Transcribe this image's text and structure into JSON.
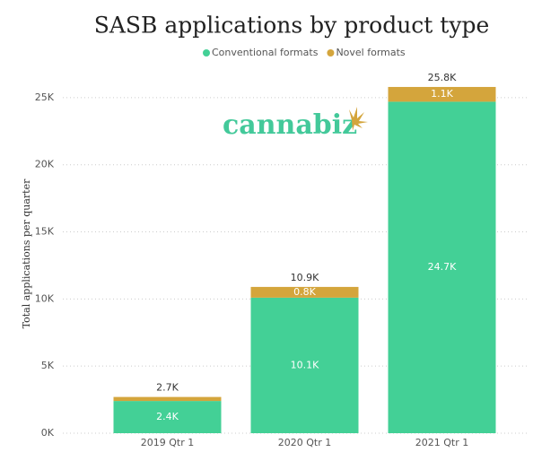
{
  "chart_data": {
    "type": "stacked_bar",
    "title": "SASB applications by product type",
    "y_label": "Total applications per quarter",
    "watermark": "cannabiz",
    "categories": [
      "2019 Qtr 1",
      "2020 Qtr 1",
      "2021 Qtr 1"
    ],
    "series": [
      {
        "name": "Conventional formats",
        "color": "#43d096",
        "values": [
          2400,
          10100,
          24700
        ],
        "value_labels": [
          "2.4K",
          "10.1K",
          "24.7K"
        ]
      },
      {
        "name": "Novel formats",
        "color": "#d4a53c",
        "values": [
          300,
          800,
          1100
        ],
        "value_labels": [
          null,
          "0.8K",
          "1.1K"
        ]
      }
    ],
    "totals": [
      2700,
      10900,
      25800
    ],
    "total_labels": [
      "2.7K",
      "10.9K",
      "25.8K"
    ],
    "ylim": [
      0,
      27000
    ],
    "yticks": [
      {
        "value": 0,
        "label": "0K"
      },
      {
        "value": 5000,
        "label": "5K"
      },
      {
        "value": 10000,
        "label": "10K"
      },
      {
        "value": 15000,
        "label": "15K"
      },
      {
        "value": 20000,
        "label": "20K"
      },
      {
        "value": 25000,
        "label": "25K"
      }
    ],
    "grid": true
  }
}
